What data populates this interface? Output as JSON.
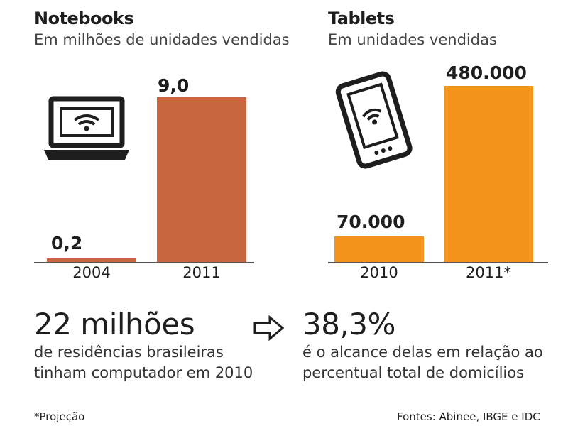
{
  "chart_data": [
    {
      "type": "bar",
      "title": "Notebooks",
      "subtitle": "Em milhões de unidades vendidas",
      "categories": [
        "2004",
        "2011"
      ],
      "values": [
        0.2,
        9.0
      ],
      "value_labels": [
        "0,2",
        "9,0"
      ],
      "ylim": [
        0,
        9.0
      ],
      "xlabel": "",
      "ylabel": "",
      "color": "#c8673f",
      "grid": false
    },
    {
      "type": "bar",
      "title": "Tablets",
      "subtitle": "Em unidades vendidas",
      "categories": [
        "2010",
        "2011*"
      ],
      "values": [
        70000,
        480000
      ],
      "value_labels": [
        "70.000",
        "480.000"
      ],
      "ylim": [
        0,
        480000
      ],
      "xlabel": "",
      "ylabel": "",
      "color": "#f4941f",
      "grid": false
    }
  ],
  "icons": {
    "notebook": "laptop-wifi-icon",
    "tablet": "tablet-wifi-icon",
    "arrow": "arrow-right-icon"
  },
  "stat_left": {
    "number": "22 milhões",
    "line1": "de residências brasileiras",
    "line2": "tinham computador em 2010"
  },
  "stat_right": {
    "number": "38,3%",
    "line1": "é o alcance delas em relação ao",
    "line2": "percentual total de domicílios"
  },
  "footnote": "*Projeção",
  "sources": "Fontes: Abinee, IBGE e IDC"
}
